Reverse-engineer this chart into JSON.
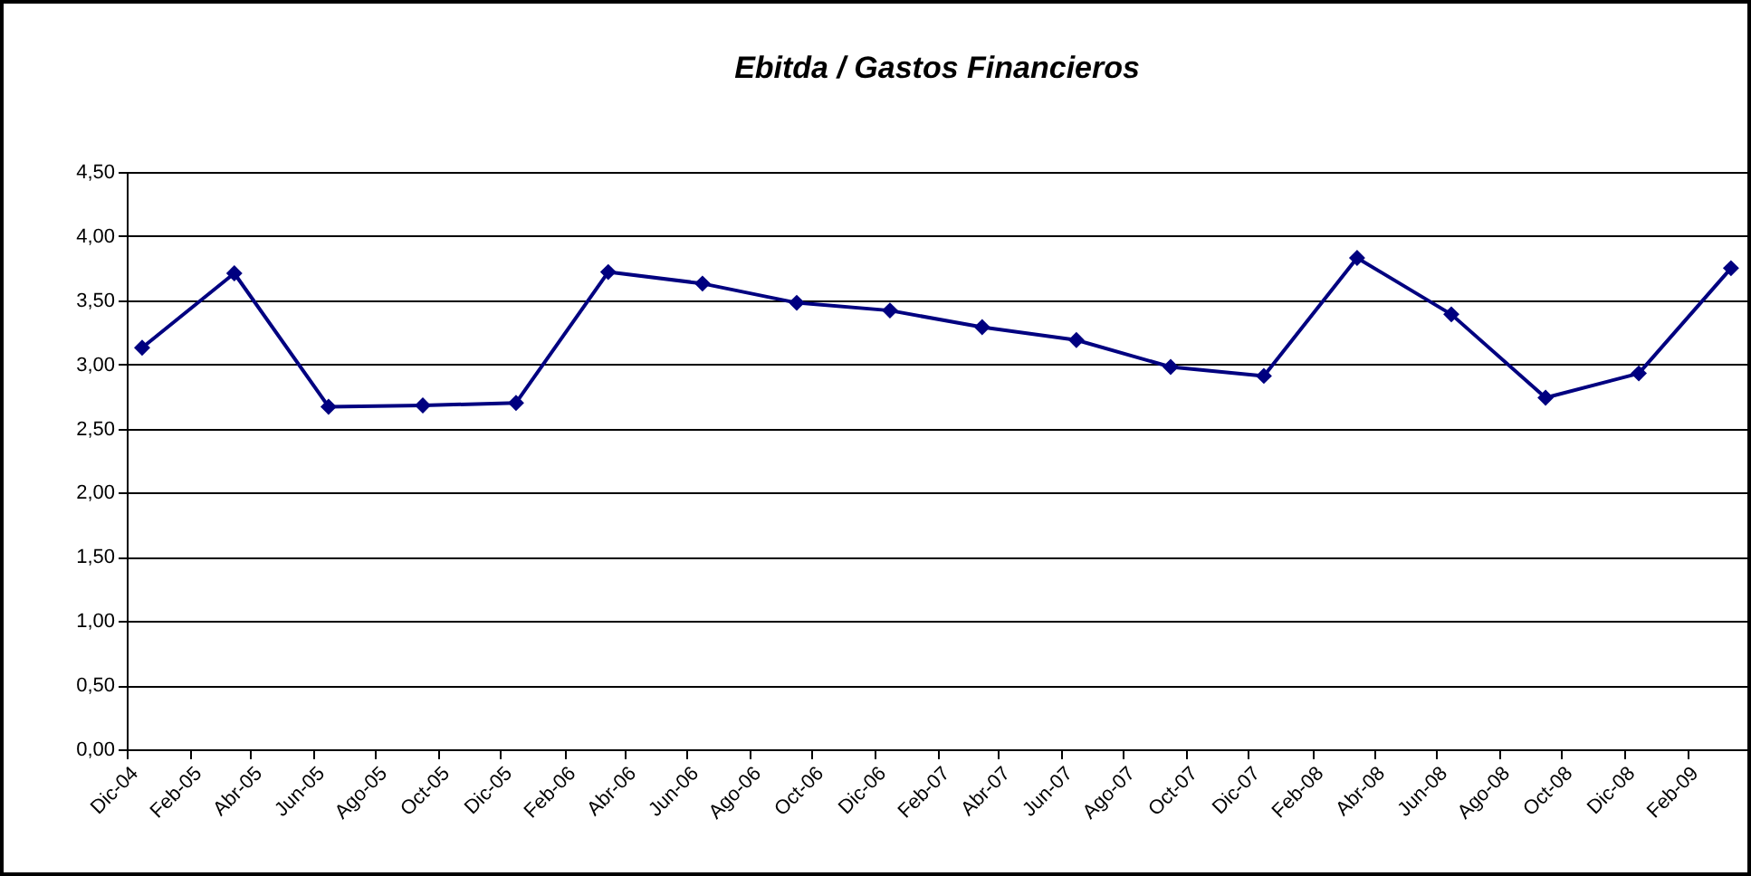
{
  "chart_data": {
    "type": "line",
    "title": "Ebitda / Gastos Financieros",
    "x": [
      "2004-12-16",
      "2005-03-16",
      "2005-06-16",
      "2005-09-16",
      "2005-12-16",
      "2006-03-16",
      "2006-06-16",
      "2006-09-16",
      "2006-12-16",
      "2007-03-16",
      "2007-06-16",
      "2007-09-16",
      "2007-12-16",
      "2008-03-16",
      "2008-06-16",
      "2008-09-16",
      "2008-12-16",
      "2009-03-16"
    ],
    "series": [
      {
        "color": "#000080",
        "values": [
          3.13,
          3.71,
          2.67,
          2.68,
          2.7,
          3.72,
          3.63,
          3.48,
          3.42,
          3.29,
          3.19,
          2.98,
          2.91,
          3.83,
          3.39,
          2.74,
          2.93,
          3.75
        ]
      }
    ],
    "marker": "diamond",
    "line_style": "solid",
    "grid": "y",
    "ylim": [
      0,
      4.5
    ],
    "yticks": [
      {
        "value": 0,
        "label": "0,00"
      },
      {
        "value": 0.5,
        "label": "0,50"
      },
      {
        "value": 1,
        "label": "1,00"
      },
      {
        "value": 1.5,
        "label": "1,50"
      },
      {
        "value": 2,
        "label": "2,00"
      },
      {
        "value": 2.5,
        "label": "2,50"
      },
      {
        "value": 3,
        "label": "3,00"
      },
      {
        "value": 3.5,
        "label": "3,50"
      },
      {
        "value": 4,
        "label": "4,00"
      },
      {
        "value": 4.5,
        "label": "4,50"
      }
    ],
    "xlim": [
      "2004-12-01",
      "2009-04-01"
    ],
    "xticks": [
      {
        "value": "2004-12-01",
        "label": "Dic-04"
      },
      {
        "value": "2005-02-01",
        "label": "Feb-05"
      },
      {
        "value": "2005-04-01",
        "label": "Abr-05"
      },
      {
        "value": "2005-06-01",
        "label": "Jun-05"
      },
      {
        "value": "2005-08-01",
        "label": "Ago-05"
      },
      {
        "value": "2005-10-01",
        "label": "Oct-05"
      },
      {
        "value": "2005-12-01",
        "label": "Dic-05"
      },
      {
        "value": "2006-02-01",
        "label": "Feb-06"
      },
      {
        "value": "2006-04-01",
        "label": "Abr-06"
      },
      {
        "value": "2006-06-01",
        "label": "Jun-06"
      },
      {
        "value": "2006-08-01",
        "label": "Ago-06"
      },
      {
        "value": "2006-10-01",
        "label": "Oct-06"
      },
      {
        "value": "2006-12-01",
        "label": "Dic-06"
      },
      {
        "value": "2007-02-01",
        "label": "Feb-07"
      },
      {
        "value": "2007-04-01",
        "label": "Abr-07"
      },
      {
        "value": "2007-06-01",
        "label": "Jun-07"
      },
      {
        "value": "2007-08-01",
        "label": "Ago-07"
      },
      {
        "value": "2007-10-01",
        "label": "Oct-07"
      },
      {
        "value": "2007-12-01",
        "label": "Dic-07"
      },
      {
        "value": "2008-02-01",
        "label": "Feb-08"
      },
      {
        "value": "2008-04-01",
        "label": "Abr-08"
      },
      {
        "value": "2008-06-01",
        "label": "Jun-08"
      },
      {
        "value": "2008-08-01",
        "label": "Ago-08"
      },
      {
        "value": "2008-10-01",
        "label": "Oct-08"
      },
      {
        "value": "2008-12-01",
        "label": "Dic-08"
      },
      {
        "value": "2009-02-01",
        "label": "Feb-09"
      }
    ]
  }
}
